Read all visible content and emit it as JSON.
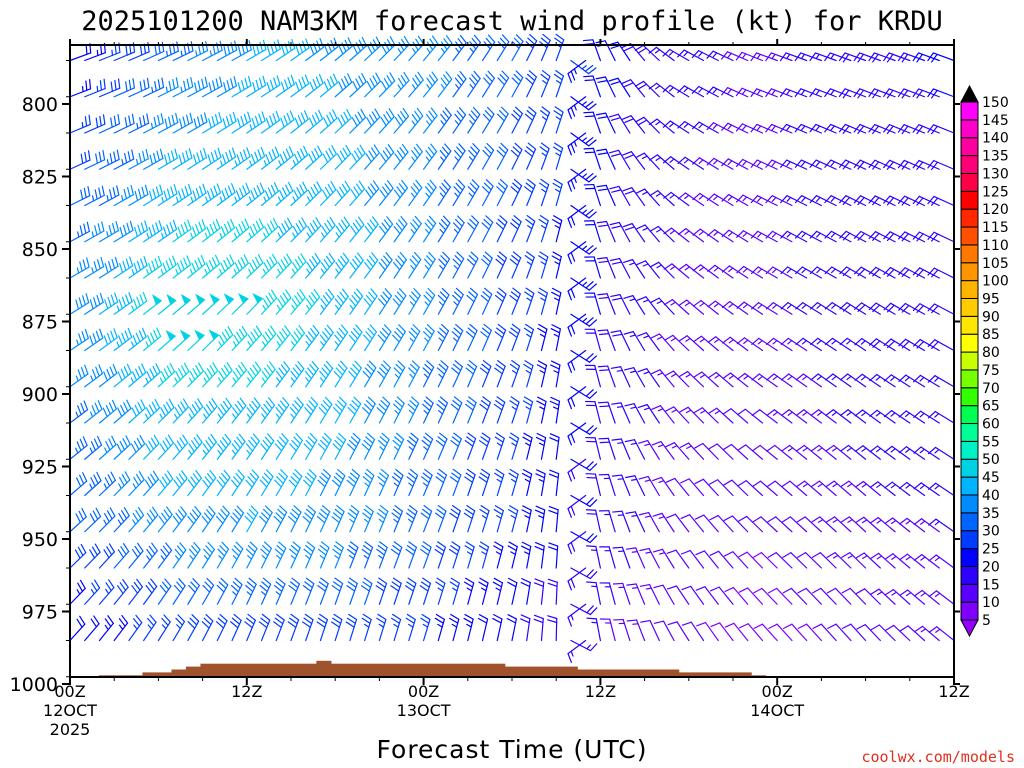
{
  "chart_data": {
    "type": "wind-barb-time-height",
    "title": "2025101200 NAM3KM forecast wind profile (kt) for KRDU",
    "xlabel": "Forecast Time (UTC)",
    "ylabel": "",
    "credit": "coolwx.com/models",
    "x_range_hours": [
      0,
      60
    ],
    "x_step_hours": 1,
    "y_axis": {
      "scale": "linear-pressure",
      "range_hpa": [
        1000,
        780
      ],
      "invert": true,
      "levels_hpa_step": 12.5,
      "levels_hpa_top": 785
    },
    "x_ticks": [
      {
        "hour": 0,
        "line1": "00Z",
        "line2": "12OCT",
        "line3": "2025"
      },
      {
        "hour": 12,
        "line1": "12Z",
        "line2": "",
        "line3": ""
      },
      {
        "hour": 24,
        "line1": "00Z",
        "line2": "13OCT",
        "line3": ""
      },
      {
        "hour": 36,
        "line1": "12Z",
        "line2": "",
        "line3": ""
      },
      {
        "hour": 48,
        "line1": "00Z",
        "line2": "14OCT",
        "line3": ""
      },
      {
        "hour": 60,
        "line1": "12Z",
        "line2": "",
        "line3": ""
      }
    ],
    "y_ticks": [
      {
        "value": 800,
        "label": "800"
      },
      {
        "value": 825,
        "label": "825"
      },
      {
        "value": 850,
        "label": "850"
      },
      {
        "value": 875,
        "label": "875"
      },
      {
        "value": 900,
        "label": "900"
      },
      {
        "value": 925,
        "label": "925"
      },
      {
        "value": 950,
        "label": "950"
      },
      {
        "value": 975,
        "label": "975"
      },
      {
        "value": 1000,
        "label": "1000"
      }
    ],
    "colorbar": {
      "labels": [
        "5",
        "10",
        "15",
        "20",
        "25",
        "30",
        "35",
        "40",
        "45",
        "50",
        "55",
        "60",
        "65",
        "70",
        "75",
        "80",
        "85",
        "90",
        "95",
        "100",
        "105",
        "110",
        "115",
        "120",
        "125",
        "130",
        "135",
        "140",
        "145",
        "150"
      ],
      "colors": [
        "#7f00ff",
        "#5a00ff",
        "#2d00ff",
        "#0000ff",
        "#003cff",
        "#0064ff",
        "#008cff",
        "#00b4ff",
        "#00d2e6",
        "#00f0c8",
        "#00ff96",
        "#00ff50",
        "#32ff00",
        "#78ff00",
        "#c8ff00",
        "#ffff00",
        "#ffe600",
        "#ffcc00",
        "#ffb400",
        "#ff9600",
        "#ff7800",
        "#ff5000",
        "#ff2800",
        "#ff0000",
        "#ff0046",
        "#ff0078",
        "#ff00a0",
        "#ff00c8",
        "#ff00ff"
      ],
      "extend": "both",
      "below_color": "#9600ff",
      "above_color": "#000000"
    },
    "wind_model": {
      "note": "wind direction (deg, from) and speed (kt) as functions of forecast hour and pressure level",
      "dir_hours": [
        0,
        6,
        12,
        18,
        24,
        30,
        33,
        36,
        42,
        48,
        54,
        60
      ],
      "dir_surface_deg": [
        40,
        30,
        20,
        15,
        15,
        10,
        0,
        350,
        330,
        320,
        320,
        310
      ],
      "dir_aloft_deg": [
        70,
        65,
        60,
        50,
        40,
        30,
        20,
        340,
        300,
        290,
        290,
        290
      ],
      "speed_hours": [
        0,
        6,
        12,
        18,
        24,
        30,
        36,
        42,
        48,
        54,
        60
      ],
      "speed_1000_kt": [
        18,
        22,
        25,
        24,
        22,
        18,
        14,
        10,
        8,
        10,
        12
      ],
      "speed_950_kt": [
        30,
        38,
        40,
        38,
        32,
        25,
        18,
        12,
        10,
        14,
        15
      ],
      "speed_875_kt": [
        38,
        50,
        48,
        44,
        36,
        28,
        20,
        14,
        14,
        18,
        18
      ],
      "speed_800_kt": [
        25,
        36,
        42,
        40,
        36,
        30,
        22,
        16,
        14,
        18,
        20
      ]
    },
    "terrain": {
      "color": "#a0522d",
      "note": "ground surface pressure (hPa) by hour",
      "pressure_hpa": [
        1000,
        1000,
        997,
        997,
        997,
        996,
        996,
        995,
        994,
        993,
        993,
        993,
        993,
        993,
        993,
        993,
        993,
        992,
        993,
        993,
        993,
        993,
        993,
        993,
        993,
        993,
        993,
        993,
        993,
        993,
        994,
        994,
        994,
        994,
        994,
        995,
        995,
        995,
        995,
        995,
        995,
        995,
        996,
        996,
        996,
        996,
        996,
        997,
        998,
        998,
        999,
        999,
        999,
        999,
        999,
        999,
        999,
        999,
        1000,
        1000,
        1001
      ]
    },
    "colors": {
      "axis": "#000000",
      "credit": "#e0301e",
      "background": "#ffffff"
    }
  }
}
